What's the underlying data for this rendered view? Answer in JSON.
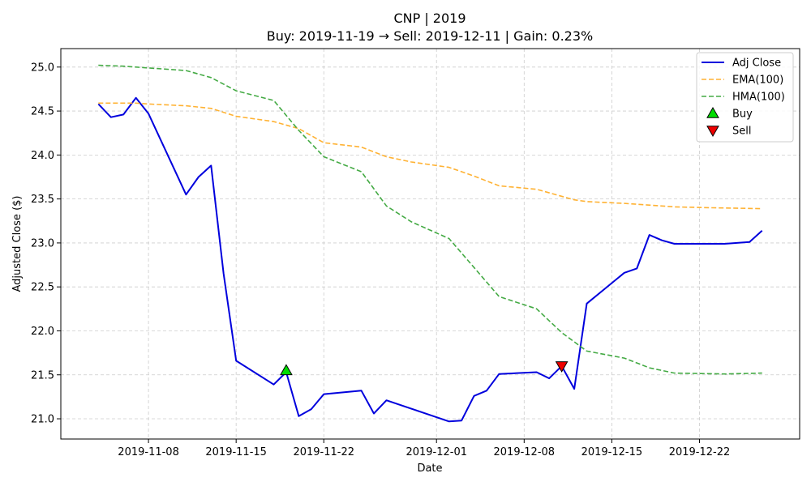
{
  "chart_data": {
    "type": "line",
    "title": "CNP | 2019",
    "subtitle": "Buy: 2019-11-19  →  Sell: 2019-12-11  |  Gain: 0.23%",
    "xlabel": "Date",
    "ylabel": "Adjusted Close ($)",
    "xlim": [
      "2019-11-01",
      "2019-12-30"
    ],
    "ylim": [
      20.77,
      25.21
    ],
    "x_ticks": [
      "2019-11-08",
      "2019-11-15",
      "2019-11-22",
      "2019-12-01",
      "2019-12-08",
      "2019-12-15",
      "2019-12-22"
    ],
    "y_ticks": [
      21.0,
      21.5,
      22.0,
      22.5,
      23.0,
      23.5,
      24.0,
      24.5,
      25.0
    ],
    "grid": true,
    "legend_position": "top-right",
    "series": [
      {
        "name": "Adj Close",
        "color": "#0000dd",
        "style": "solid",
        "points": [
          [
            "2019-11-04",
            24.58
          ],
          [
            "2019-11-05",
            24.43
          ],
          [
            "2019-11-06",
            24.46
          ],
          [
            "2019-11-07",
            24.65
          ],
          [
            "2019-11-08",
            24.47
          ],
          [
            "2019-11-11",
            23.55
          ],
          [
            "2019-11-12",
            23.75
          ],
          [
            "2019-11-13",
            23.88
          ],
          [
            "2019-11-14",
            22.65
          ],
          [
            "2019-11-15",
            21.66
          ],
          [
            "2019-11-18",
            21.39
          ],
          [
            "2019-11-19",
            21.53
          ],
          [
            "2019-11-20",
            21.03
          ],
          [
            "2019-11-21",
            21.11
          ],
          [
            "2019-11-22",
            21.28
          ],
          [
            "2019-11-25",
            21.32
          ],
          [
            "2019-11-26",
            21.06
          ],
          [
            "2019-11-27",
            21.21
          ],
          [
            "2019-12-02",
            20.97
          ],
          [
            "2019-12-03",
            20.98
          ],
          [
            "2019-12-04",
            21.26
          ],
          [
            "2019-12-05",
            21.32
          ],
          [
            "2019-12-06",
            21.51
          ],
          [
            "2019-12-09",
            21.53
          ],
          [
            "2019-12-10",
            21.46
          ],
          [
            "2019-12-11",
            21.6
          ],
          [
            "2019-12-12",
            21.34
          ],
          [
            "2019-12-13",
            22.31
          ],
          [
            "2019-12-16",
            22.66
          ],
          [
            "2019-12-17",
            22.71
          ],
          [
            "2019-12-18",
            23.09
          ],
          [
            "2019-12-19",
            23.03
          ],
          [
            "2019-12-20",
            22.99
          ],
          [
            "2019-12-23",
            22.99
          ],
          [
            "2019-12-24",
            22.99
          ],
          [
            "2019-12-26",
            23.01
          ],
          [
            "2019-12-27",
            23.14
          ]
        ]
      },
      {
        "name": "EMA(100)",
        "color": "#ffb233",
        "style": "dashed",
        "points": [
          [
            "2019-11-04",
            24.59
          ],
          [
            "2019-11-07",
            24.59
          ],
          [
            "2019-11-08",
            24.58
          ],
          [
            "2019-11-11",
            24.56
          ],
          [
            "2019-11-13",
            24.53
          ],
          [
            "2019-11-15",
            24.44
          ],
          [
            "2019-11-18",
            24.38
          ],
          [
            "2019-11-20",
            24.3
          ],
          [
            "2019-11-22",
            24.14
          ],
          [
            "2019-11-25",
            24.09
          ],
          [
            "2019-11-27",
            23.98
          ],
          [
            "2019-11-29",
            23.92
          ],
          [
            "2019-12-02",
            23.86
          ],
          [
            "2019-12-04",
            23.76
          ],
          [
            "2019-12-06",
            23.65
          ],
          [
            "2019-12-09",
            23.61
          ],
          [
            "2019-12-12",
            23.49
          ],
          [
            "2019-12-13",
            23.47
          ],
          [
            "2019-12-16",
            23.45
          ],
          [
            "2019-12-20",
            23.41
          ],
          [
            "2019-12-23",
            23.4
          ],
          [
            "2019-12-27",
            23.39
          ]
        ]
      },
      {
        "name": "HMA(100)",
        "color": "#44aa44",
        "style": "dashed",
        "points": [
          [
            "2019-11-04",
            25.02
          ],
          [
            "2019-11-06",
            25.01
          ],
          [
            "2019-11-08",
            24.99
          ],
          [
            "2019-11-11",
            24.96
          ],
          [
            "2019-11-13",
            24.88
          ],
          [
            "2019-11-15",
            24.73
          ],
          [
            "2019-11-18",
            24.62
          ],
          [
            "2019-11-20",
            24.28
          ],
          [
            "2019-11-22",
            23.98
          ],
          [
            "2019-11-25",
            23.81
          ],
          [
            "2019-11-27",
            23.42
          ],
          [
            "2019-11-29",
            23.24
          ],
          [
            "2019-12-02",
            23.05
          ],
          [
            "2019-12-06",
            22.39
          ],
          [
            "2019-12-09",
            22.25
          ],
          [
            "2019-12-11",
            21.98
          ],
          [
            "2019-12-13",
            21.77
          ],
          [
            "2019-12-16",
            21.69
          ],
          [
            "2019-12-18",
            21.58
          ],
          [
            "2019-12-20",
            21.52
          ],
          [
            "2019-12-24",
            21.51
          ],
          [
            "2019-12-27",
            21.52
          ]
        ]
      }
    ],
    "markers": [
      {
        "name": "Buy",
        "date": "2019-11-19",
        "value": 21.55,
        "shape": "triangle-up",
        "color": "#00dd00"
      },
      {
        "name": "Sell",
        "date": "2019-12-11",
        "value": 21.6,
        "shape": "triangle-down",
        "color": "#ee0000"
      }
    ]
  }
}
